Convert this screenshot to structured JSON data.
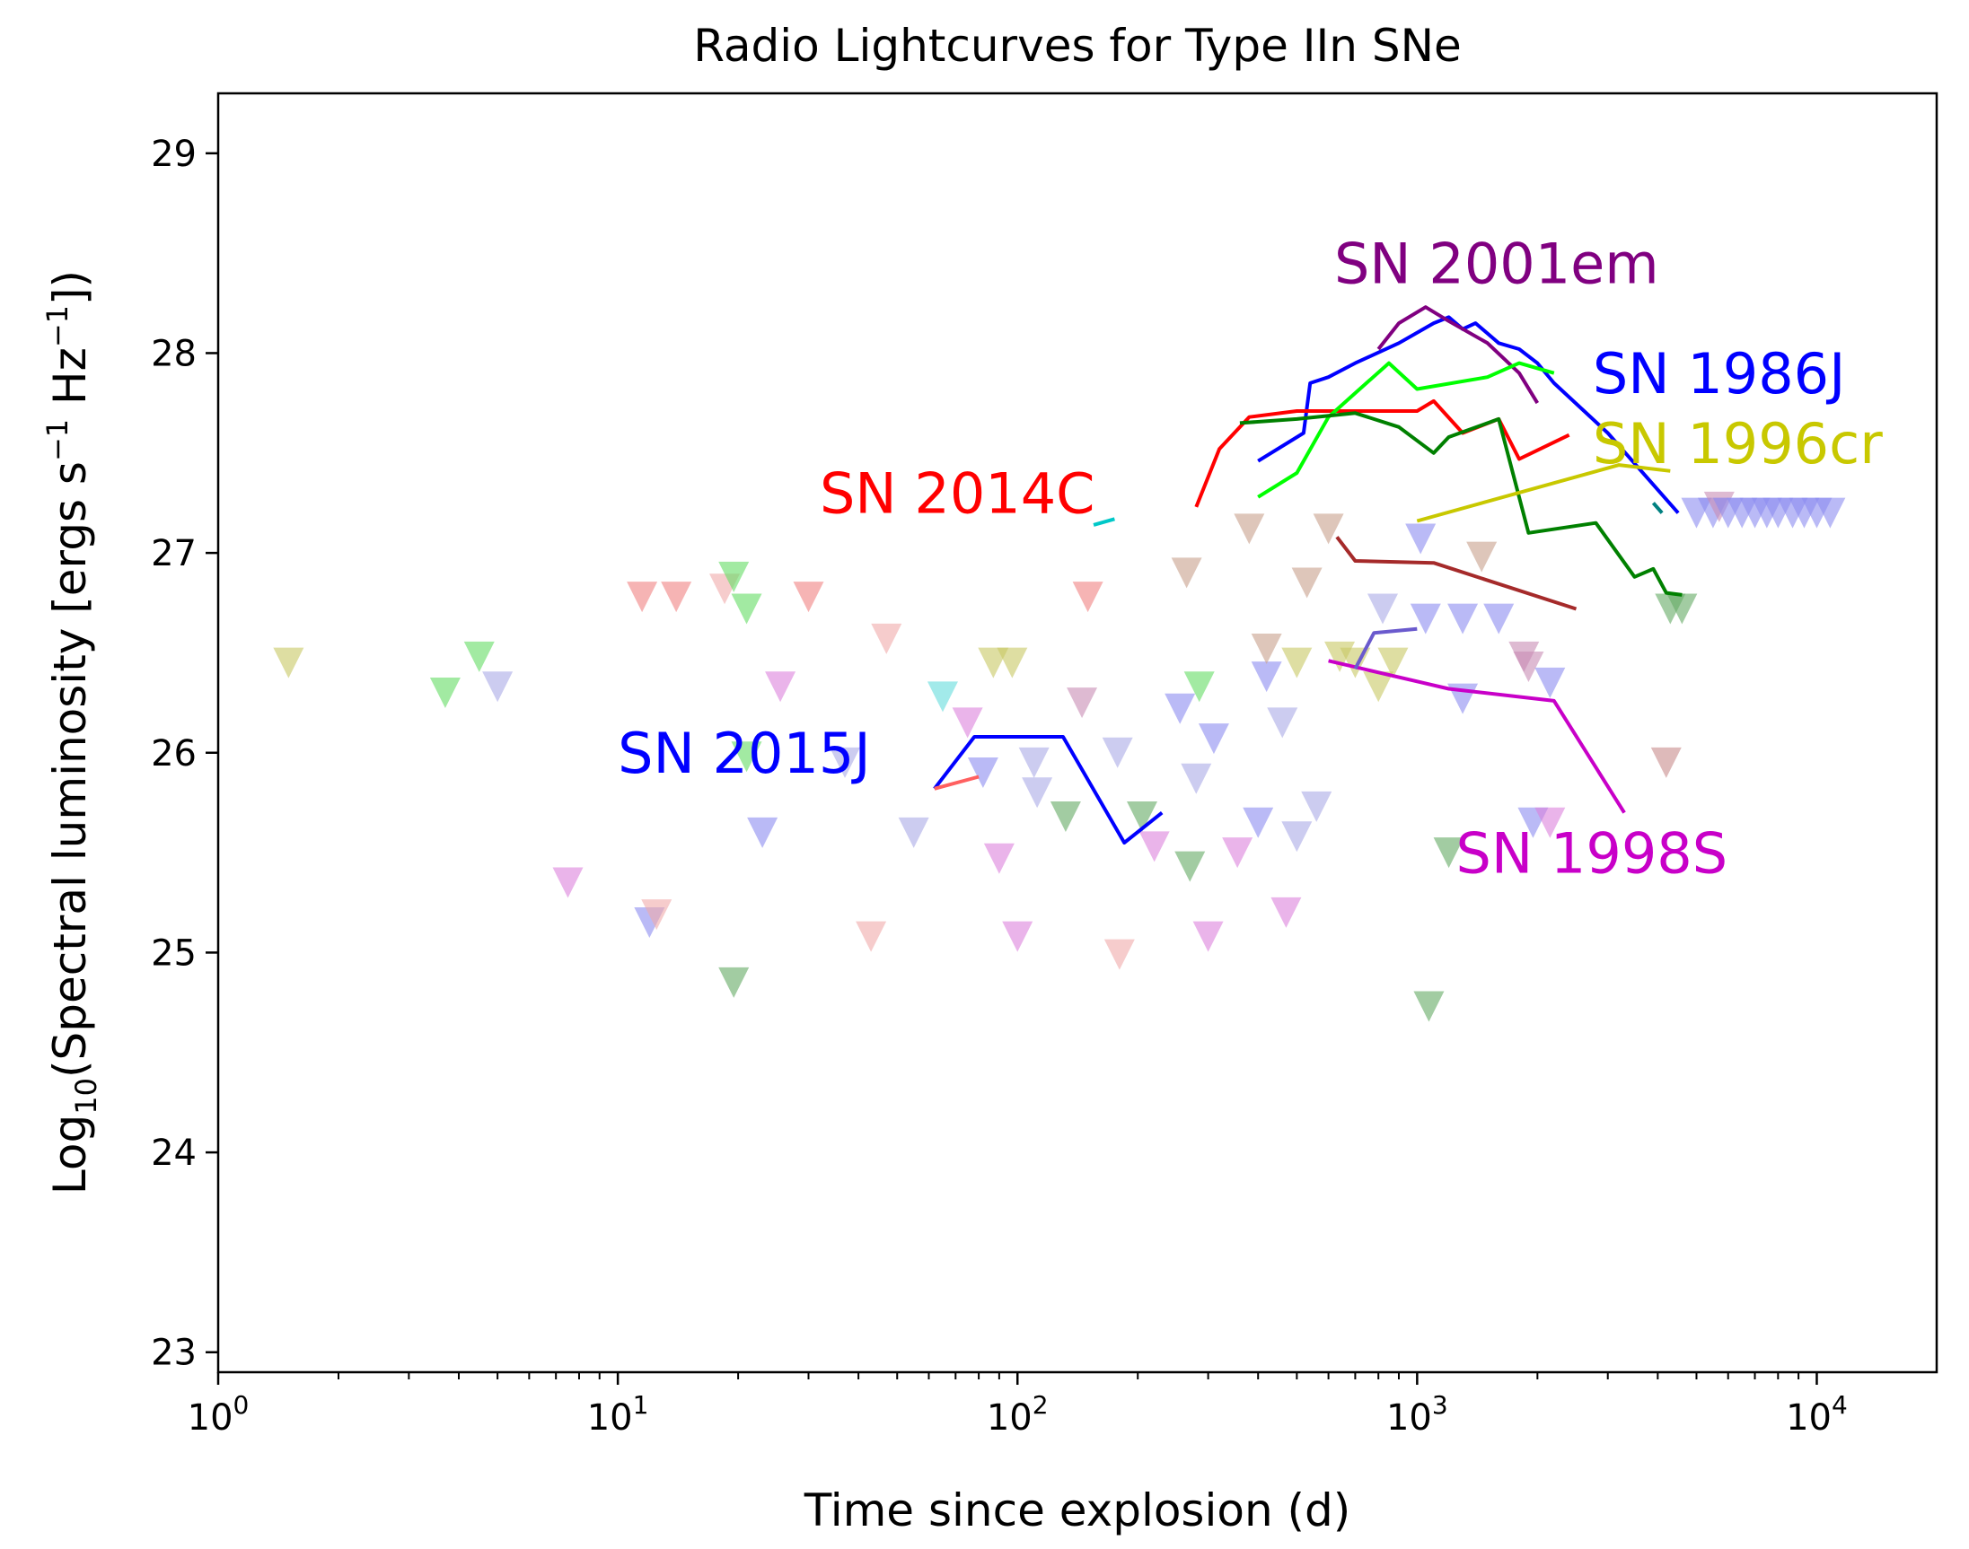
{
  "chart_data": {
    "type": "line",
    "title": "Radio Lightcurves for Type IIn SNe",
    "xlabel": "Time since explosion (d)",
    "ylabel_prefix": "Log",
    "ylabel_sub": "10",
    "ylabel_main": "(Spectral luminosity [ergs s",
    "ylabel_exp1": "−1",
    "ylabel_mid": " Hz",
    "ylabel_exp2": "−1",
    "ylabel_end": "])",
    "x_scale": "log",
    "xlim_log10": [
      0,
      4.3
    ],
    "ylim": [
      22.9,
      29.3
    ],
    "x_ticks": [
      {
        "exp": 0,
        "base": "10",
        "sup": "0"
      },
      {
        "exp": 1,
        "base": "10",
        "sup": "1"
      },
      {
        "exp": 2,
        "base": "10",
        "sup": "2"
      },
      {
        "exp": 3,
        "base": "10",
        "sup": "3"
      },
      {
        "exp": 4,
        "base": "10",
        "sup": "4"
      }
    ],
    "y_ticks": [
      23,
      24,
      25,
      26,
      27,
      28,
      29
    ],
    "series": [
      {
        "name": "SN 1986J",
        "color": "#0000ff",
        "points": [
          [
            400,
            27.46
          ],
          [
            520,
            27.6
          ],
          [
            540,
            27.85
          ],
          [
            600,
            27.88
          ],
          [
            700,
            27.95
          ],
          [
            900,
            28.05
          ],
          [
            1100,
            28.15
          ],
          [
            1200,
            28.18
          ],
          [
            1300,
            28.12
          ],
          [
            1400,
            28.15
          ],
          [
            1600,
            28.05
          ],
          [
            1800,
            28.02
          ],
          [
            2000,
            27.95
          ],
          [
            2200,
            27.85
          ],
          [
            3000,
            27.6
          ],
          [
            4500,
            27.2
          ]
        ]
      },
      {
        "name": "SN 2001em",
        "color": "#800080",
        "points": [
          [
            800,
            28.02
          ],
          [
            900,
            28.15
          ],
          [
            1050,
            28.23
          ],
          [
            1200,
            28.16
          ],
          [
            1500,
            28.05
          ],
          [
            1800,
            27.9
          ],
          [
            2000,
            27.75
          ]
        ]
      },
      {
        "name": "SN 2014C",
        "color": "#ff0000",
        "points": [
          [
            280,
            27.23
          ],
          [
            320,
            27.52
          ],
          [
            380,
            27.68
          ],
          [
            500,
            27.71
          ],
          [
            700,
            27.71
          ],
          [
            1000,
            27.71
          ],
          [
            1100,
            27.76
          ],
          [
            1300,
            27.6
          ],
          [
            1600,
            27.67
          ],
          [
            1800,
            27.47
          ],
          [
            2400,
            27.59
          ]
        ]
      },
      {
        "name": "bright green",
        "color": "#00ff00",
        "points": [
          [
            400,
            27.28
          ],
          [
            500,
            27.4
          ],
          [
            600,
            27.68
          ],
          [
            700,
            27.8
          ],
          [
            850,
            27.95
          ],
          [
            1000,
            27.82
          ],
          [
            1500,
            27.88
          ],
          [
            1800,
            27.95
          ],
          [
            2200,
            27.9
          ]
        ]
      },
      {
        "name": "dark green",
        "color": "#008000",
        "points": [
          [
            360,
            27.65
          ],
          [
            500,
            27.67
          ],
          [
            700,
            27.7
          ],
          [
            900,
            27.63
          ],
          [
            1100,
            27.5
          ],
          [
            1200,
            27.58
          ],
          [
            1600,
            27.67
          ],
          [
            1900,
            27.1
          ],
          [
            2800,
            27.15
          ],
          [
            3500,
            26.88
          ],
          [
            3900,
            26.92
          ],
          [
            4200,
            26.8
          ],
          [
            4600,
            26.79
          ]
        ]
      },
      {
        "name": "SN 1996cr",
        "color": "#c8c800",
        "points": [
          [
            1000,
            27.16
          ],
          [
            3200,
            27.44
          ],
          [
            4300,
            27.41
          ]
        ]
      },
      {
        "name": "brown",
        "color": "#a52a2a",
        "points": [
          [
            630,
            27.08
          ],
          [
            700,
            26.96
          ],
          [
            1100,
            26.95
          ],
          [
            2500,
            26.72
          ]
        ]
      },
      {
        "name": "SN 1998S",
        "color": "#c800c8",
        "points": [
          [
            600,
            26.46
          ],
          [
            1200,
            26.32
          ],
          [
            2200,
            26.26
          ],
          [
            3300,
            25.7
          ]
        ]
      },
      {
        "name": "slate",
        "color": "#6a5acd",
        "points": [
          [
            700,
            26.42
          ],
          [
            780,
            26.6
          ],
          [
            1000,
            26.62
          ]
        ]
      },
      {
        "name": "SN 2015J",
        "color": "#0000ff",
        "points": [
          [
            62,
            25.82
          ],
          [
            78,
            26.08
          ],
          [
            100,
            26.08
          ],
          [
            130,
            26.08
          ],
          [
            185,
            25.55
          ],
          [
            230,
            25.7
          ]
        ]
      },
      {
        "name": "light red",
        "color": "#ff6060",
        "points": [
          [
            62,
            25.82
          ],
          [
            80,
            25.88
          ]
        ]
      },
      {
        "name": "cyan",
        "color": "#00c8c8",
        "points": [
          [
            155,
            27.14
          ],
          [
            175,
            27.17
          ]
        ]
      },
      {
        "name": "teal",
        "color": "#008080",
        "points": [
          [
            3900,
            27.25
          ],
          [
            4100,
            27.2
          ]
        ]
      }
    ],
    "annotations": [
      {
        "text": "SN 2001em",
        "color": "#800080",
        "x": 620,
        "y": 28.35
      },
      {
        "text": "SN 1986J",
        "color": "#0000ff",
        "x": 2750,
        "y": 27.8
      },
      {
        "text": "SN 1996cr",
        "color": "#c8c800",
        "x": 2750,
        "y": 27.45
      },
      {
        "text": "SN 2014C",
        "color": "#ff0000",
        "x": 32,
        "y": 27.2
      },
      {
        "text": "SN 2015J",
        "color": "#0000ff",
        "x": 10,
        "y": 25.9
      },
      {
        "text": "SN 1998S",
        "color": "#c800c8",
        "x": 1250,
        "y": 25.4
      }
    ],
    "upper_limits": [
      {
        "x": 1.5,
        "y": 26.45,
        "color": "#c8c864"
      },
      {
        "x": 3.7,
        "y": 26.3,
        "color": "#64dc64"
      },
      {
        "x": 4.5,
        "y": 26.48,
        "color": "#64dc64"
      },
      {
        "x": 5,
        "y": 26.33,
        "color": "#aaaae6"
      },
      {
        "x": 7.5,
        "y": 25.35,
        "color": "#dc82dc"
      },
      {
        "x": 11.5,
        "y": 26.78,
        "color": "#f08282"
      },
      {
        "x": 14,
        "y": 26.78,
        "color": "#f08282"
      },
      {
        "x": 12,
        "y": 25.15,
        "color": "#8c8cf0"
      },
      {
        "x": 12.5,
        "y": 25.19,
        "color": "#f0aaaa"
      },
      {
        "x": 18.5,
        "y": 26.82,
        "color": "#f0aaaa"
      },
      {
        "x": 19.5,
        "y": 26.88,
        "color": "#64dc64"
      },
      {
        "x": 21,
        "y": 26.72,
        "color": "#64dc64"
      },
      {
        "x": 19.5,
        "y": 24.85,
        "color": "#64aa64"
      },
      {
        "x": 21,
        "y": 25.98,
        "color": "#64dc64"
      },
      {
        "x": 23,
        "y": 25.6,
        "color": "#8c8cf0"
      },
      {
        "x": 25.5,
        "y": 26.33,
        "color": "#dc82dc"
      },
      {
        "x": 30,
        "y": 26.78,
        "color": "#f08282"
      },
      {
        "x": 37,
        "y": 25.95,
        "color": "#aaaae6"
      },
      {
        "x": 43,
        "y": 25.08,
        "color": "#f0aaaa"
      },
      {
        "x": 47,
        "y": 26.57,
        "color": "#f0aaaa"
      },
      {
        "x": 55,
        "y": 25.6,
        "color": "#aaaae6"
      },
      {
        "x": 65,
        "y": 26.28,
        "color": "#64dcdc"
      },
      {
        "x": 75,
        "y": 26.15,
        "color": "#dc82dc"
      },
      {
        "x": 82,
        "y": 25.9,
        "color": "#8c8cf0"
      },
      {
        "x": 87,
        "y": 26.45,
        "color": "#c8c864"
      },
      {
        "x": 90,
        "y": 25.47,
        "color": "#dc82dc"
      },
      {
        "x": 97,
        "y": 26.45,
        "color": "#c8c864"
      },
      {
        "x": 100,
        "y": 25.08,
        "color": "#dc82dc"
      },
      {
        "x": 110,
        "y": 25.95,
        "color": "#aaaae6"
      },
      {
        "x": 112,
        "y": 25.8,
        "color": "#aaaae6"
      },
      {
        "x": 132,
        "y": 25.68,
        "color": "#64aa64"
      },
      {
        "x": 145,
        "y": 26.25,
        "color": "#c88cb4"
      },
      {
        "x": 150,
        "y": 26.78,
        "color": "#f08282"
      },
      {
        "x": 178,
        "y": 26.0,
        "color": "#aaaae6"
      },
      {
        "x": 180,
        "y": 24.99,
        "color": "#f0aaaa"
      },
      {
        "x": 205,
        "y": 25.68,
        "color": "#64aa64"
      },
      {
        "x": 220,
        "y": 25.53,
        "color": "#dc82dc"
      },
      {
        "x": 255,
        "y": 26.22,
        "color": "#8c8cf0"
      },
      {
        "x": 265,
        "y": 26.9,
        "color": "#c8a08c"
      },
      {
        "x": 270,
        "y": 25.43,
        "color": "#64aa64"
      },
      {
        "x": 280,
        "y": 25.87,
        "color": "#aaaae6"
      },
      {
        "x": 285,
        "y": 26.33,
        "color": "#64dc64"
      },
      {
        "x": 300,
        "y": 25.08,
        "color": "#dc82dc"
      },
      {
        "x": 310,
        "y": 26.07,
        "color": "#8c8cf0"
      },
      {
        "x": 355,
        "y": 25.5,
        "color": "#dc82dc"
      },
      {
        "x": 380,
        "y": 27.12,
        "color": "#c8a08c"
      },
      {
        "x": 400,
        "y": 25.65,
        "color": "#8c8cf0"
      },
      {
        "x": 420,
        "y": 26.38,
        "color": "#8c8cf0"
      },
      {
        "x": 420,
        "y": 26.52,
        "color": "#c8a08c"
      },
      {
        "x": 460,
        "y": 26.15,
        "color": "#aaaae6"
      },
      {
        "x": 470,
        "y": 25.2,
        "color": "#dc82dc"
      },
      {
        "x": 500,
        "y": 25.58,
        "color": "#aaaae6"
      },
      {
        "x": 500,
        "y": 26.45,
        "color": "#c8c864"
      },
      {
        "x": 530,
        "y": 26.85,
        "color": "#c8a08c"
      },
      {
        "x": 560,
        "y": 25.73,
        "color": "#aaaae6"
      },
      {
        "x": 600,
        "y": 27.12,
        "color": "#c8a08c"
      },
      {
        "x": 640,
        "y": 26.48,
        "color": "#c8c864"
      },
      {
        "x": 700,
        "y": 26.45,
        "color": "#c8c864"
      },
      {
        "x": 800,
        "y": 26.33,
        "color": "#c8c864"
      },
      {
        "x": 820,
        "y": 26.72,
        "color": "#aaaae6"
      },
      {
        "x": 870,
        "y": 26.45,
        "color": "#c8c864"
      },
      {
        "x": 1020,
        "y": 27.07,
        "color": "#8c8cf0"
      },
      {
        "x": 1050,
        "y": 26.67,
        "color": "#8c8cf0"
      },
      {
        "x": 1070,
        "y": 24.73,
        "color": "#64aa64"
      },
      {
        "x": 1200,
        "y": 25.5,
        "color": "#64aa64"
      },
      {
        "x": 1300,
        "y": 26.67,
        "color": "#8c8cf0"
      },
      {
        "x": 1300,
        "y": 26.27,
        "color": "#8c8cf0"
      },
      {
        "x": 1450,
        "y": 26.98,
        "color": "#c8a08c"
      },
      {
        "x": 1600,
        "y": 26.67,
        "color": "#8c8cf0"
      },
      {
        "x": 1850,
        "y": 26.48,
        "color": "#c88cb4"
      },
      {
        "x": 1900,
        "y": 26.43,
        "color": "#c88cb4"
      },
      {
        "x": 1950,
        "y": 25.65,
        "color": "#8c8cf0"
      },
      {
        "x": 2150,
        "y": 25.65,
        "color": "#dc82dc"
      },
      {
        "x": 2150,
        "y": 26.35,
        "color": "#8c8cf0"
      },
      {
        "x": 4200,
        "y": 25.95,
        "color": "#c88c8c"
      },
      {
        "x": 4300,
        "y": 26.72,
        "color": "#64aa64"
      },
      {
        "x": 4600,
        "y": 26.72,
        "color": "#64aa64"
      },
      {
        "x": 5000,
        "y": 27.2,
        "color": "#8c8cf0"
      },
      {
        "x": 5500,
        "y": 27.2,
        "color": "#8c8cf0"
      },
      {
        "x": 5700,
        "y": 27.23,
        "color": "#c88cb4"
      },
      {
        "x": 6000,
        "y": 27.2,
        "color": "#8c8cf0"
      },
      {
        "x": 6500,
        "y": 27.2,
        "color": "#8c8cf0"
      },
      {
        "x": 7000,
        "y": 27.2,
        "color": "#8c8cf0"
      },
      {
        "x": 7500,
        "y": 27.2,
        "color": "#8c8cf0"
      },
      {
        "x": 8000,
        "y": 27.2,
        "color": "#8c8cf0"
      },
      {
        "x": 8700,
        "y": 27.2,
        "color": "#8c8cf0"
      },
      {
        "x": 9300,
        "y": 27.2,
        "color": "#8c8cf0"
      },
      {
        "x": 10000,
        "y": 27.2,
        "color": "#8c8cf0"
      },
      {
        "x": 10800,
        "y": 27.2,
        "color": "#8c8cf0"
      }
    ]
  }
}
